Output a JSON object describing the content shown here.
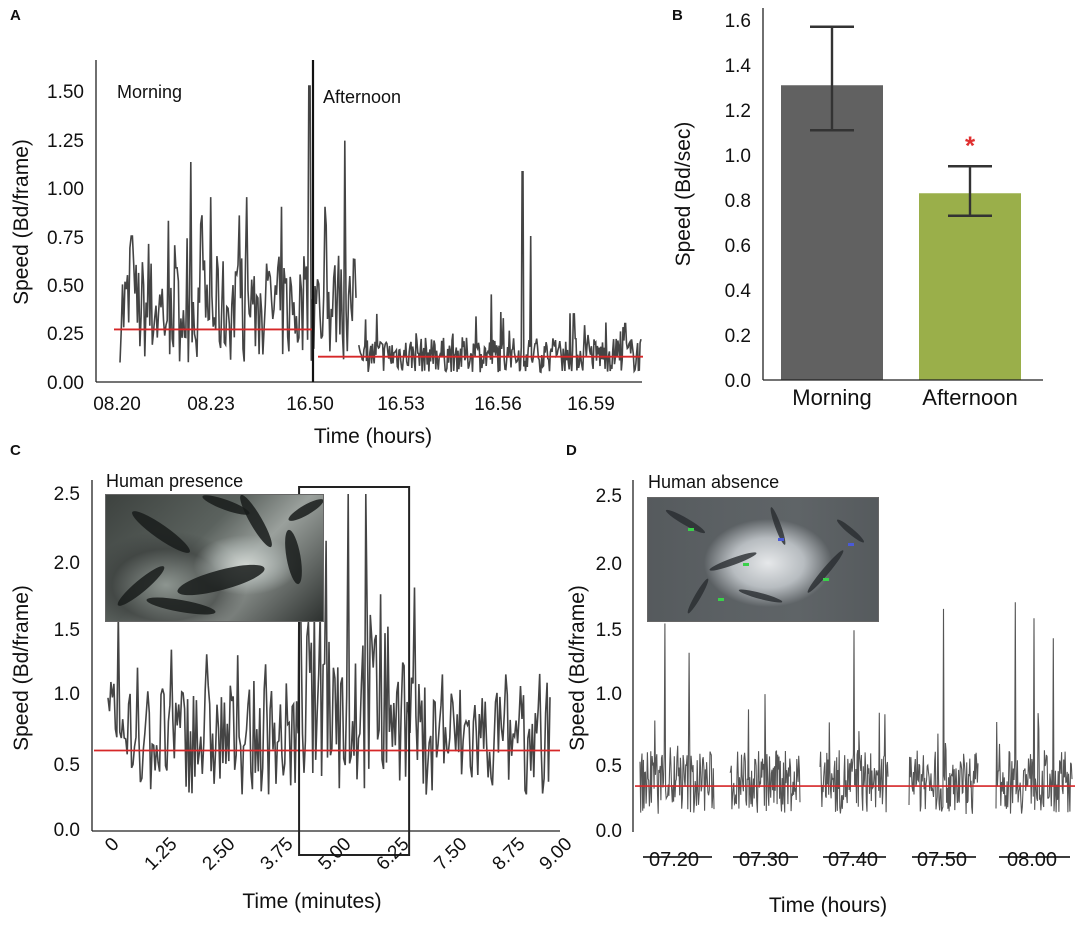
{
  "panels": {
    "a": {
      "letter": "A",
      "annotations": {
        "morning": "Morning",
        "afternoon": "Afternoon"
      },
      "xlabel": "Time (hours)",
      "ylabel": "Speed (Bd/frame)",
      "ylim": [
        0,
        1.65
      ],
      "ytick_labels": [
        "0.00",
        "0.25",
        "0.50",
        "0.75",
        "1.00",
        "1.25",
        "1.50"
      ],
      "xtick_labels": [
        "08.20",
        "08.23",
        "16.50",
        "16.53",
        "16.56",
        "16.59"
      ]
    },
    "b": {
      "letter": "B",
      "xlabel": "",
      "ylabel": "Speed (Bd/sec)",
      "ytick_labels": [
        "0.0",
        "0.2",
        "0.4",
        "0.6",
        "0.8",
        "1.0",
        "1.2",
        "1.4",
        "1.6"
      ],
      "significance": "*"
    },
    "c": {
      "letter": "C",
      "inset_label": "Human presence",
      "xlabel": "Time (minutes)",
      "ylabel": "Speed (Bd/frame)",
      "ytick_labels": [
        "0.0",
        "0.5",
        "1.0",
        "1.5",
        "2.0",
        "2.5"
      ],
      "xtick_labels": [
        "0",
        "1.25",
        "2.50",
        "3.75",
        "5.00",
        "6.25",
        "7.50",
        "8.75",
        "9.00"
      ]
    },
    "d": {
      "letter": "D",
      "inset_label": "Human absence",
      "xlabel": "Time (hours)",
      "ylabel": "Speed (Bd/frame)",
      "ytick_labels": [
        "0.0",
        "0.5",
        "1.0",
        "1.5",
        "2.0",
        "2.5"
      ],
      "xtick_labels": [
        "07.20",
        "07.30",
        "07.40",
        "07.50",
        "08.00"
      ]
    }
  },
  "chart_data": [
    {
      "panel": "A",
      "type": "line",
      "title": "",
      "xlabel": "Time (hours)",
      "ylabel": "Speed (Bd/frame)",
      "ylim": [
        0,
        1.65
      ],
      "series": [
        {
          "name": "Morning",
          "mean": 0.27,
          "peaks": [
            [
              0.3,
              0.75
            ],
            [
              1.8,
              1.13
            ],
            [
              2.3,
              0.95
            ],
            [
              3.2,
              0.95
            ],
            [
              4.1,
              0.9
            ],
            [
              4.8,
              1.52
            ],
            [
              5.2,
              0.9
            ],
            [
              5.7,
              1.24
            ]
          ]
        },
        {
          "name": "Afternoon",
          "mean": 0.13,
          "peaks": [
            [
              6.5,
              0.35
            ],
            [
              7.5,
              0.25
            ],
            [
              9.4,
              0.45
            ],
            [
              10.2,
              1.08
            ],
            [
              10.4,
              0.75
            ],
            [
              11.5,
              0.35
            ],
            [
              12.8,
              0.3
            ]
          ]
        }
      ],
      "x_range": [
        0,
        13.2
      ],
      "divider_at": 6.0,
      "mean_line_color": "#d62728",
      "line_color": "#444444"
    },
    {
      "panel": "B",
      "type": "bar",
      "categories": [
        "Morning",
        "Afternoon"
      ],
      "values": [
        1.31,
        0.83
      ],
      "error_low": [
        1.11,
        0.73
      ],
      "error_high": [
        1.57,
        0.95
      ],
      "ylabel": "Speed (Bd/sec)",
      "xlabel": "",
      "ylim": [
        0,
        1.65
      ],
      "colors": [
        "#616161",
        "#9aaf4a"
      ],
      "significance": {
        "category": "Afternoon",
        "symbol": "*",
        "color": "#e03030"
      }
    },
    {
      "panel": "C",
      "type": "line",
      "xlabel": "Time (minutes)",
      "ylabel": "Speed (Bd/frame)",
      "x_range": [
        0,
        9.0
      ],
      "ylim": [
        0,
        2.6
      ],
      "mean": 0.58,
      "highlight_window": [
        3.85,
        6.05
      ],
      "peaks": [
        [
          0.2,
          1.6
        ],
        [
          0.6,
          1.2
        ],
        [
          2.0,
          1.3
        ],
        [
          3.9,
          2.35
        ],
        [
          4.45,
          2.15
        ],
        [
          4.9,
          2.5
        ],
        [
          5.25,
          2.5
        ],
        [
          5.55,
          1.75
        ],
        [
          6.25,
          1.8
        ],
        [
          6.8,
          1.15
        ],
        [
          8.1,
          1.15
        ]
      ],
      "mean_line_color": "#d62728",
      "line_color": "#444444"
    },
    {
      "panel": "D",
      "type": "line",
      "xlabel": "Time (hours)",
      "ylabel": "Speed (Bd/frame)",
      "categories": [
        "07.20",
        "07.30",
        "07.40",
        "07.50",
        "08.00"
      ],
      "ylim": [
        0,
        2.6
      ],
      "mean": 0.33,
      "segment_peaks": [
        [
          1.55,
          1.33
        ],
        [
          1.02
        ],
        [
          1.5
        ],
        [
          1.66
        ],
        [
          1.71,
          1.59,
          1.44
        ]
      ],
      "mean_line_color": "#d62728",
      "line_color": "#555555"
    }
  ]
}
